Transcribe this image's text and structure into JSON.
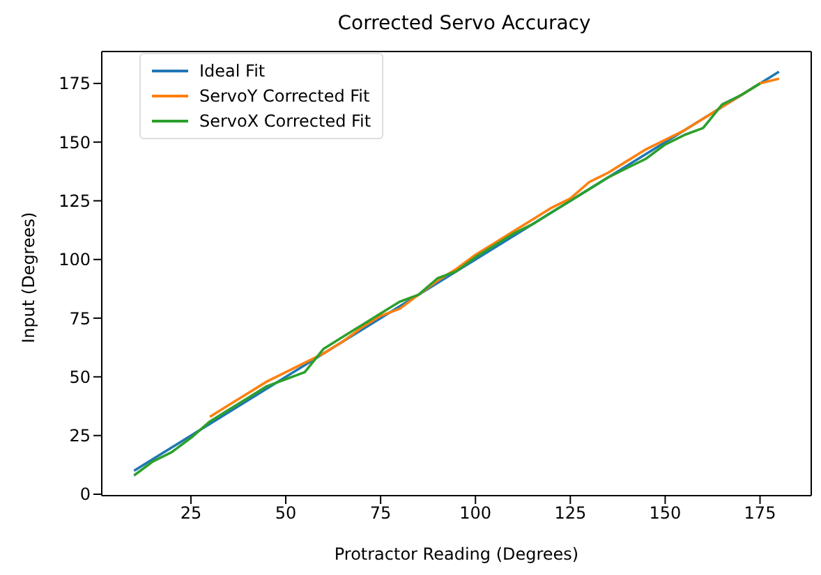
{
  "chart_data": {
    "type": "line",
    "title": "Corrected Servo Accuracy",
    "xlabel": "Protractor Reading (Degrees)",
    "ylabel": "Input (Degrees)",
    "xlim": [
      1.5,
      188.5
    ],
    "ylim": [
      -0.6,
      188.6
    ],
    "xticks": [
      25,
      50,
      75,
      100,
      125,
      150,
      175
    ],
    "yticks": [
      0,
      25,
      50,
      75,
      100,
      125,
      150,
      175
    ],
    "legend": "top left",
    "series": [
      {
        "name": "Ideal Fit",
        "color": "#1f77b4",
        "x": [
          10,
          180
        ],
        "values": [
          10,
          180
        ]
      },
      {
        "name": "ServoY Corrected Fit",
        "color": "#ff7f0e",
        "x": [
          30,
          35,
          40,
          45,
          50,
          55,
          60,
          65,
          70,
          75,
          80,
          85,
          90,
          95,
          100,
          105,
          110,
          115,
          120,
          125,
          130,
          135,
          140,
          145,
          150,
          155,
          160,
          165,
          170,
          175,
          180
        ],
        "values": [
          33,
          38,
          43,
          48,
          52,
          56,
          60,
          65,
          71,
          76,
          79,
          85,
          91,
          96,
          102,
          107,
          112,
          117,
          122,
          126,
          133,
          137,
          142,
          147,
          151,
          155,
          160,
          165,
          170,
          175,
          177
        ]
      },
      {
        "name": "ServoX Corrected Fit",
        "color": "#2ca02c",
        "x": [
          10,
          15,
          20,
          25,
          30,
          35,
          40,
          45,
          50,
          55,
          60,
          65,
          70,
          75,
          80,
          85,
          90,
          95,
          100,
          105,
          110,
          115,
          120,
          125,
          130,
          135,
          140,
          145,
          150,
          155,
          160,
          165,
          170,
          175
        ],
        "values": [
          8,
          14,
          18,
          24,
          31,
          36,
          41,
          46,
          49,
          52,
          62,
          67,
          72,
          77,
          82,
          85,
          92,
          95,
          101,
          106,
          111,
          115,
          120,
          125,
          130,
          135,
          139,
          143,
          149,
          153,
          156,
          166,
          170,
          175
        ]
      }
    ]
  }
}
